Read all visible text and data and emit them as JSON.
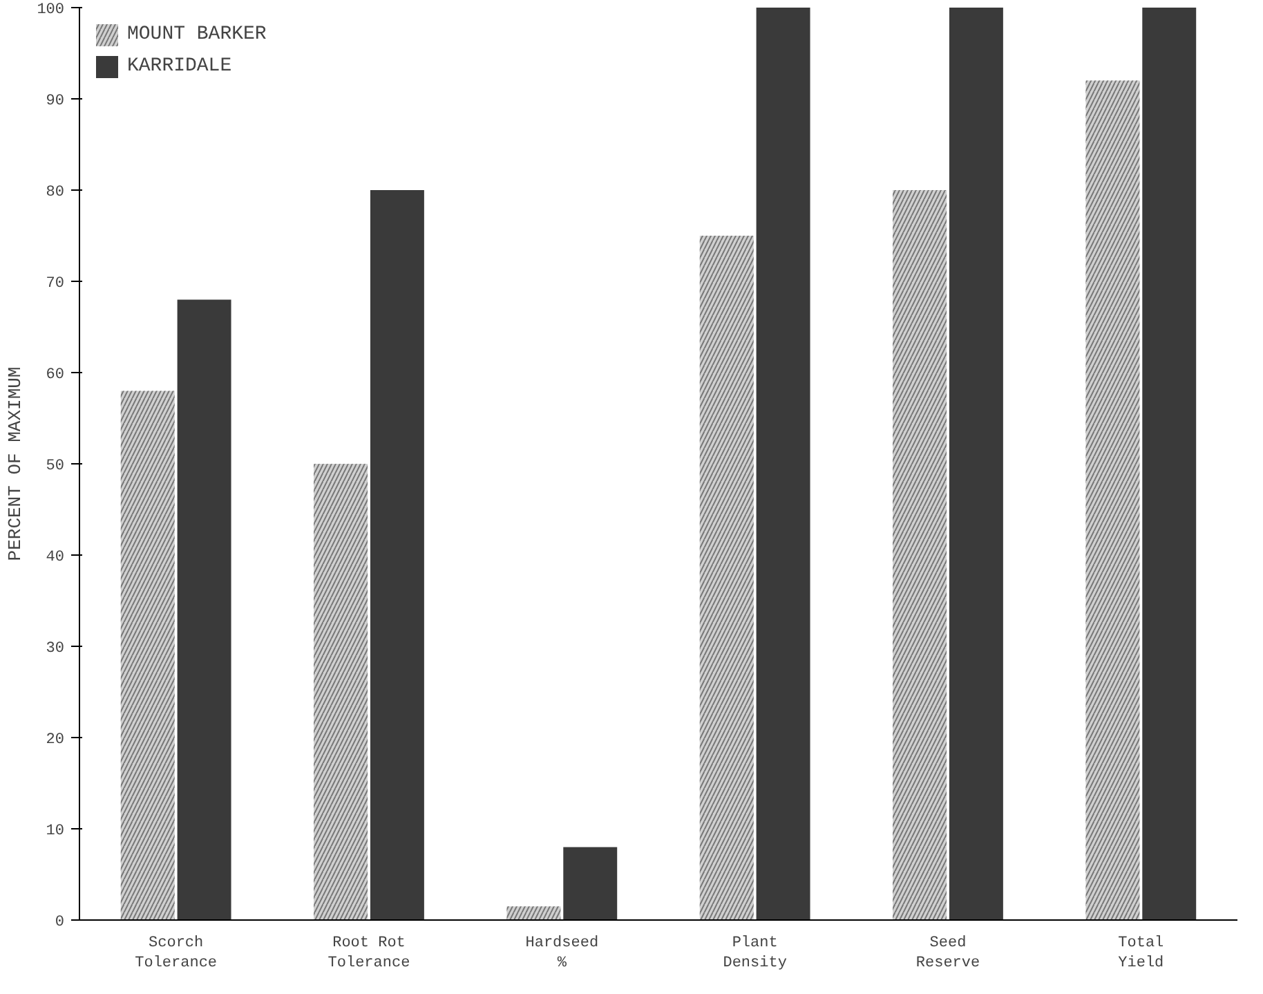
{
  "chart_data": {
    "type": "bar",
    "ylabel": "PERCENT OF MAXIMUM",
    "categories": [
      "Scorch\nTolerance",
      "Root Rot\nTolerance",
      "Hardseed\n%",
      "Plant\nDensity",
      "Seed\nReserve",
      "Total\nYield"
    ],
    "series": [
      {
        "name": "MOUNT BARKER",
        "color": "#d0d0d0",
        "values": [
          58,
          50,
          1.5,
          75,
          80,
          92
        ]
      },
      {
        "name": "KARRIDALE",
        "color": "#3a3a3a",
        "values": [
          68,
          80,
          8,
          100,
          100,
          100
        ]
      }
    ],
    "ylim": [
      0,
      100
    ],
    "yticks": [
      0,
      10,
      20,
      30,
      40,
      50,
      60,
      70,
      80,
      90,
      100
    ],
    "grid": false,
    "legend": "top left"
  }
}
